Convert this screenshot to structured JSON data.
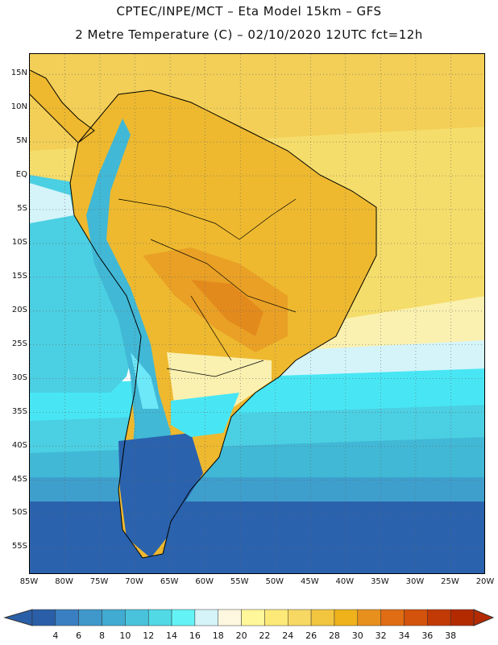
{
  "header": {
    "line1": "CPTEC/INPE/MCT –  Eta Model 15km – GFS",
    "line2": "2 Metre Temperature (C) – 02/10/2020 12UTC fct=12h"
  },
  "map": {
    "lon_range": [
      -85,
      -20
    ],
    "lat_range": [
      -59,
      18
    ],
    "lat_ticks": [
      "15N",
      "10N",
      "5N",
      "EQ",
      "5S",
      "10S",
      "15S",
      "20S",
      "25S",
      "30S",
      "35S",
      "40S",
      "45S",
      "50S",
      "55S"
    ],
    "lat_values": [
      15,
      10,
      5,
      0,
      -5,
      -10,
      -15,
      -20,
      -25,
      -30,
      -35,
      -40,
      -45,
      -50,
      -55
    ],
    "lon_ticks": [
      "85W",
      "80W",
      "75W",
      "70W",
      "65W",
      "60W",
      "55W",
      "50W",
      "45W",
      "40W",
      "35W",
      "30W",
      "25W",
      "20W"
    ],
    "lon_values": [
      -85,
      -80,
      -75,
      -70,
      -65,
      -60,
      -55,
      -50,
      -45,
      -40,
      -35,
      -30,
      -25,
      -20
    ],
    "ocean_colors": [
      "#f3cf57",
      "#f5dd6b",
      "#faf0b0",
      "#d4f4fa",
      "#48e6f4",
      "#4bcfe2",
      "#41b8d6",
      "#3e9fcd",
      "#2a62ad"
    ],
    "land_colors": [
      "#eeb92f",
      "#e9a025",
      "#e38a1c",
      "#2a62ad",
      "#41b8d6",
      "#6ce8f8"
    ]
  },
  "colorbar": {
    "labels": [
      "4",
      "6",
      "8",
      "10",
      "12",
      "14",
      "16",
      "18",
      "20",
      "22",
      "24",
      "26",
      "28",
      "30",
      "32",
      "34",
      "36",
      "38"
    ],
    "colors": [
      "#2a5fa8",
      "#3a7fc1",
      "#3f98c9",
      "#41abd1",
      "#49c3dc",
      "#51d9e6",
      "#63f3f7",
      "#d4f4fa",
      "#fdf7e0",
      "#fff79a",
      "#fce977",
      "#f7d862",
      "#f2c53f",
      "#efb21b",
      "#e8901d",
      "#e06c14",
      "#d3520c",
      "#c23a05",
      "#b32a00"
    ],
    "low_color": "#2a5fa8",
    "high_color": "#b32a00"
  }
}
